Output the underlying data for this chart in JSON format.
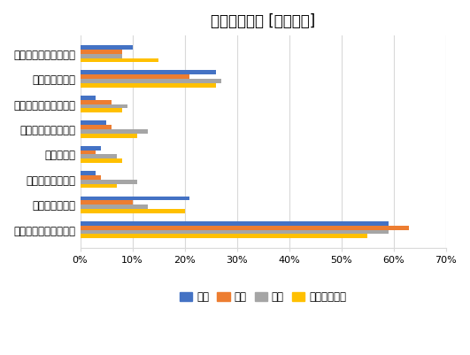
{
  "title": "仕事での利用 [複数回答]",
  "categories": [
    "財布・鍵の位置の管理",
    "ドアの操作管理",
    "電子レンジの操作管理",
    "血圧，心拍数の管理",
    "体重の管理",
    "冷蔵庫の在庫管理",
    "室内温度の管理",
    "一切の利用を望まない"
  ],
  "series": {
    "日本": [
      10,
      26,
      3,
      5,
      4,
      3,
      21,
      59
    ],
    "英国": [
      8,
      21,
      6,
      6,
      3,
      4,
      10,
      63
    ],
    "米国": [
      8,
      27,
      9,
      13,
      7,
      11,
      13,
      59
    ],
    "スウェーデン": [
      15,
      26,
      8,
      11,
      8,
      7,
      20,
      55
    ]
  },
  "colors": {
    "日本": "#4472C4",
    "英国": "#ED7D31",
    "米国": "#A5A5A5",
    "スウェーデン": "#FFC000"
  },
  "xlim": [
    0,
    70
  ],
  "xticks": [
    0,
    10,
    20,
    30,
    40,
    50,
    60,
    70
  ],
  "xtick_labels": [
    "0%",
    "10%",
    "20%",
    "30%",
    "40%",
    "50%",
    "60%",
    "70%"
  ],
  "background_color": "#FFFFFF",
  "plot_background": "#FFFFFF",
  "grid_color": "#D9D9D9",
  "title_fontsize": 12,
  "legend_fontsize": 8.5,
  "tick_fontsize": 8,
  "label_fontsize": 8.5
}
